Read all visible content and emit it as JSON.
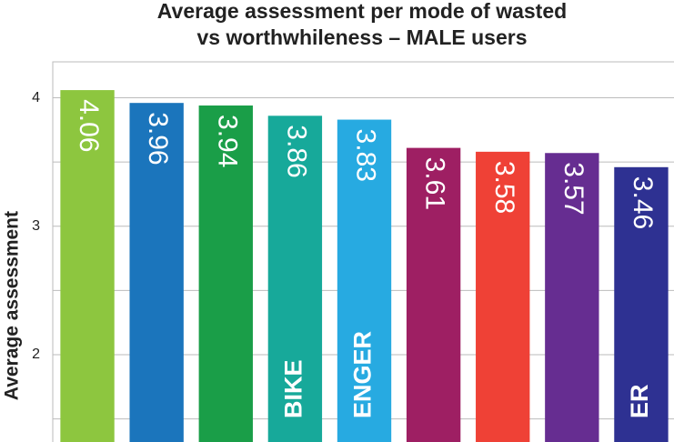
{
  "chart_data": {
    "type": "bar",
    "title": [
      "Average assessment per mode of wasted",
      "vs worthwhileness – MALE users"
    ],
    "y_label": "Average assessment",
    "categories": [
      null,
      null,
      null,
      "BIKE",
      "ENGER",
      null,
      null,
      null,
      "ER"
    ],
    "values": [
      4.06,
      3.96,
      3.94,
      3.86,
      3.83,
      3.61,
      3.58,
      3.57,
      3.46
    ],
    "colors": [
      "#8dc63f",
      "#1b75bc",
      "#1a9e48",
      "#17a99a",
      "#27aae1",
      "#9e1f63",
      "#ef4136",
      "#662d91",
      "#2e3192"
    ],
    "ylim": [
      1.32,
      4.28
    ],
    "yticks": [
      2,
      3,
      4
    ],
    "minor_gridlines": [
      1.5,
      2.5,
      3.5
    ],
    "grid": true
  }
}
